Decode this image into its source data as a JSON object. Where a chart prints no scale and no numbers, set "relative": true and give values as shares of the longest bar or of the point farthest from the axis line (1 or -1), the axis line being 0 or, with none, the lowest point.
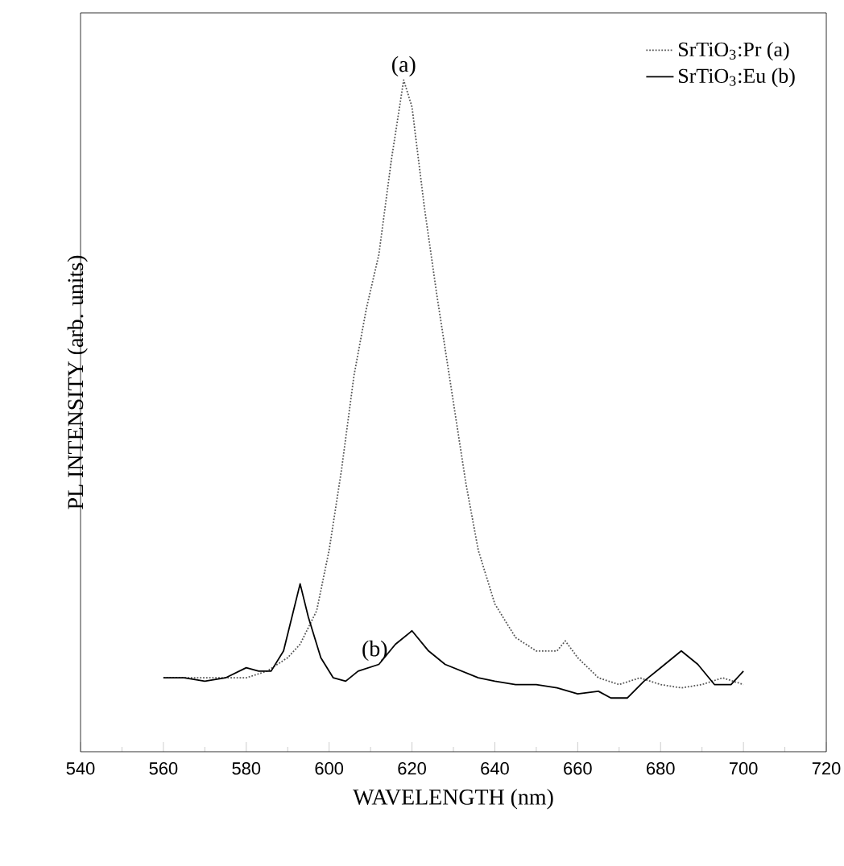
{
  "chart_data": {
    "type": "line",
    "xlabel": "WAVELENGTH (nm)",
    "ylabel": "PL INTENSITY (arb. units)",
    "relative": true,
    "xlim": [
      540,
      720
    ],
    "xticks": [
      540,
      560,
      580,
      600,
      620,
      640,
      660,
      680,
      700,
      720
    ],
    "legend": "top right",
    "series": [
      {
        "name": "SrTiO$_{3}$:Pr (a)",
        "color": "#555555",
        "line_style": "dotted",
        "x": [
          560,
          580,
          585,
          590,
          593,
          597,
          600,
          603,
          606,
          609,
          612,
          615,
          618,
          620,
          623,
          626,
          630,
          633,
          636,
          640,
          645,
          650,
          655,
          657,
          660,
          665,
          670,
          675,
          680,
          685,
          690,
          695,
          700
        ],
        "values": [
          0.11,
          0.11,
          0.12,
          0.14,
          0.16,
          0.21,
          0.3,
          0.42,
          0.56,
          0.66,
          0.74,
          0.88,
          1.0,
          0.96,
          0.81,
          0.68,
          0.52,
          0.4,
          0.3,
          0.22,
          0.17,
          0.15,
          0.15,
          0.165,
          0.14,
          0.11,
          0.1,
          0.11,
          0.1,
          0.095,
          0.1,
          0.11,
          0.1
        ]
      },
      {
        "name": "SrTiO$_{3}$:Eu (b)",
        "color": "#000000",
        "line_style": "solid",
        "x": [
          560,
          565,
          570,
          575,
          580,
          583,
          586,
          589,
          591,
          593,
          595,
          598,
          601,
          604,
          607,
          612,
          616,
          620,
          624,
          628,
          632,
          636,
          640,
          645,
          650,
          655,
          660,
          665,
          668,
          672,
          676,
          680,
          685,
          689,
          693,
          697,
          700
        ],
        "values": [
          0.11,
          0.11,
          0.105,
          0.11,
          0.125,
          0.12,
          0.12,
          0.15,
          0.2,
          0.25,
          0.2,
          0.14,
          0.11,
          0.105,
          0.12,
          0.13,
          0.16,
          0.18,
          0.15,
          0.13,
          0.12,
          0.11,
          0.105,
          0.1,
          0.1,
          0.095,
          0.086,
          0.09,
          0.08,
          0.08,
          0.105,
          0.125,
          0.15,
          0.13,
          0.1,
          0.1,
          0.12
        ]
      }
    ],
    "annotations": [
      {
        "text": "(a)",
        "x": 618,
        "y": 1.0
      },
      {
        "text": "(b)",
        "x": 611,
        "y": 0.13
      }
    ]
  }
}
